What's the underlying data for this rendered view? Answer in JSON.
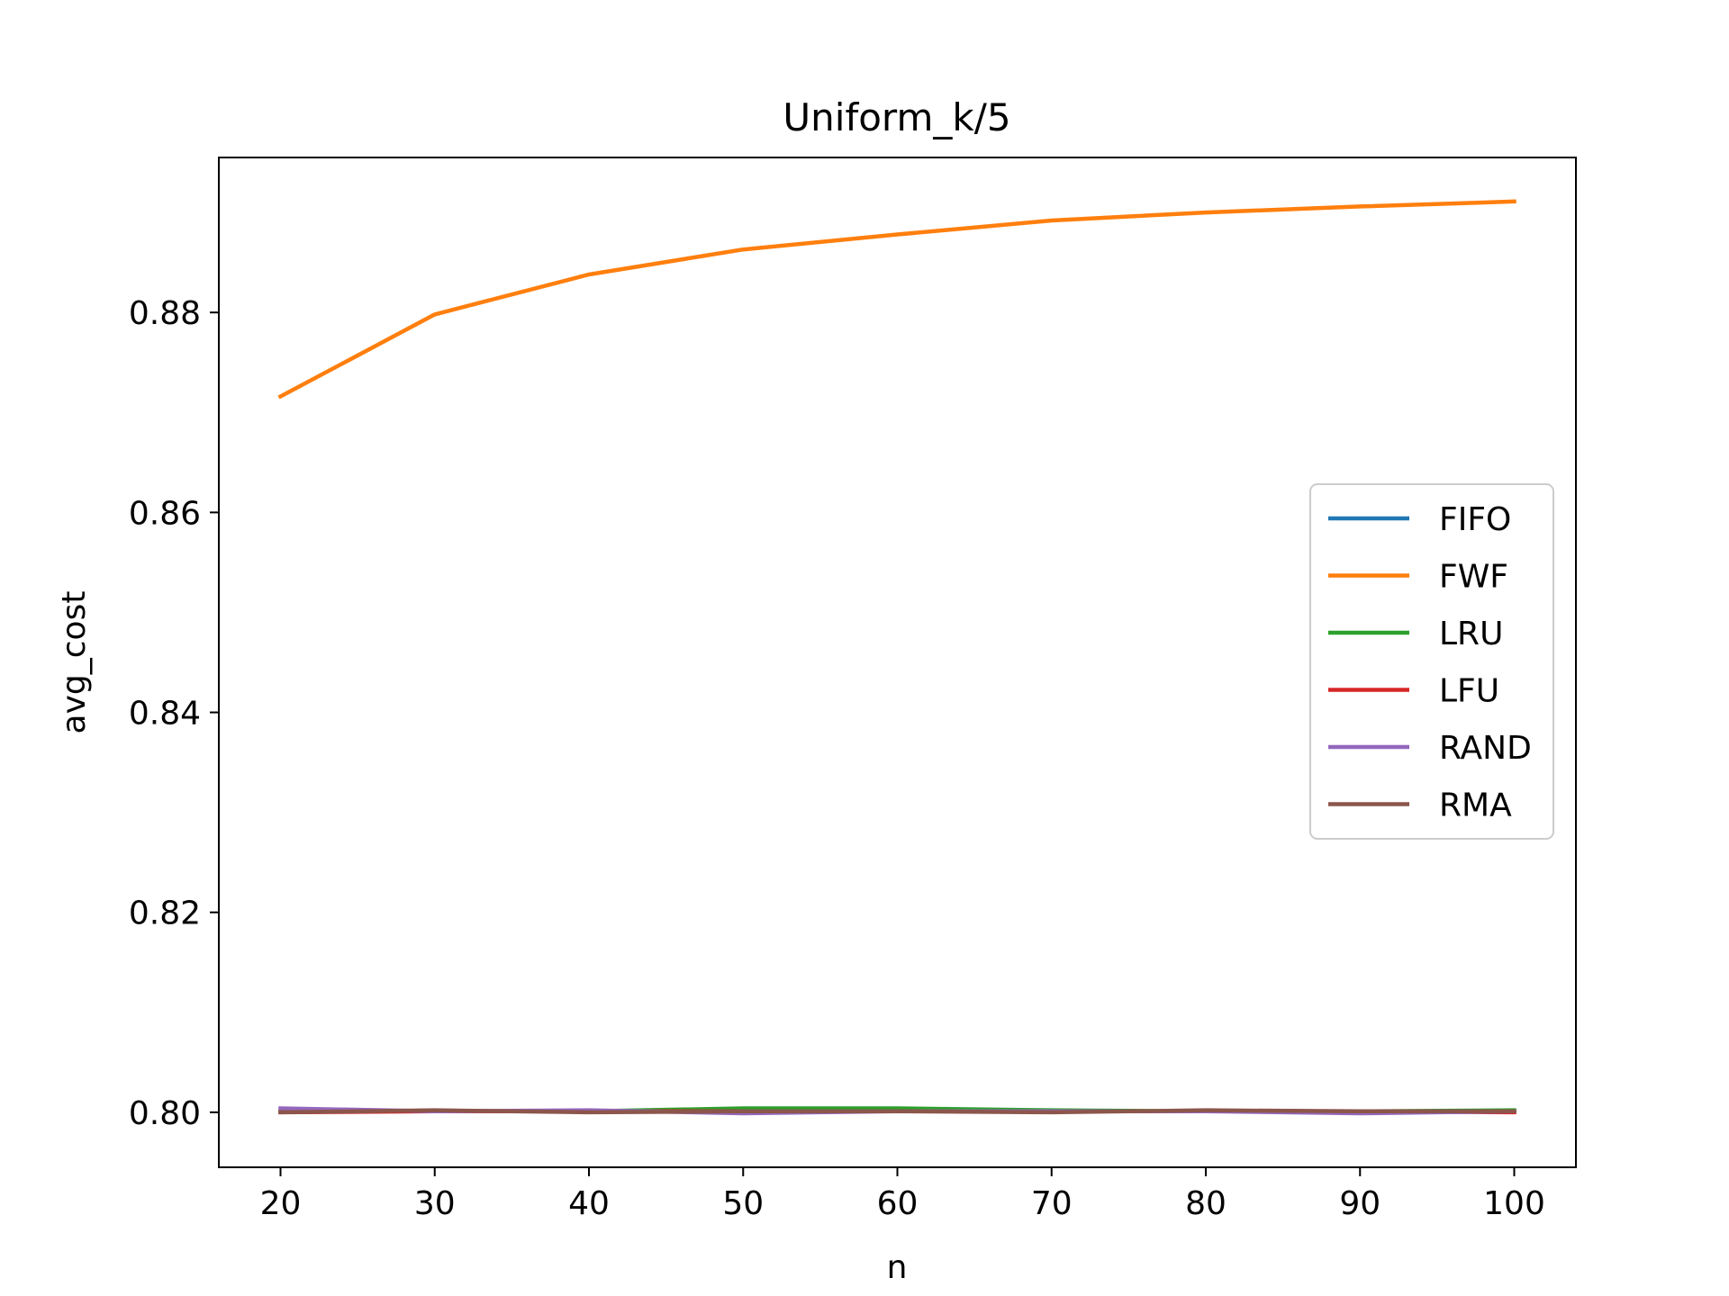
{
  "chart_data": {
    "type": "line",
    "title": "Uniform_k/5",
    "xlabel": "n",
    "ylabel": "avg_cost",
    "x": [
      20,
      30,
      40,
      50,
      60,
      70,
      80,
      90,
      100
    ],
    "xlim": [
      16,
      104
    ],
    "ylim": [
      0.7945,
      0.8955
    ],
    "xticks": [
      20,
      30,
      40,
      50,
      60,
      70,
      80,
      90,
      100
    ],
    "yticks": [
      0.8,
      0.82,
      0.84,
      0.86,
      0.88
    ],
    "ytick_labels": [
      "0.80",
      "0.82",
      "0.84",
      "0.86",
      "0.88"
    ],
    "grid": false,
    "legend_position": "center-right",
    "series": [
      {
        "name": "FIFO",
        "color": "#1f77b4",
        "values": [
          0.8001,
          0.8001,
          0.8001,
          0.8002,
          0.8002,
          0.8001,
          0.8001,
          0.8001,
          0.8001
        ]
      },
      {
        "name": "FWF",
        "color": "#ff7f0e",
        "values": [
          0.8716,
          0.8798,
          0.8838,
          0.8863,
          0.8878,
          0.8892,
          0.89,
          0.8906,
          0.8911
        ]
      },
      {
        "name": "LRU",
        "color": "#2ca02c",
        "values": [
          0.8001,
          0.8001,
          0.8001,
          0.8004,
          0.8004,
          0.8002,
          0.8001,
          0.8001,
          0.8002
        ]
      },
      {
        "name": "LFU",
        "color": "#d62728",
        "values": [
          0.8,
          0.8001,
          0.8001,
          0.8001,
          0.8001,
          0.8001,
          0.8001,
          0.8001,
          0.8
        ]
      },
      {
        "name": "RAND",
        "color": "#9467bd",
        "values": [
          0.8004,
          0.8001,
          0.8002,
          0.7999,
          0.8001,
          0.8001,
          0.8001,
          0.7999,
          0.8001
        ]
      },
      {
        "name": "RMA",
        "color": "#8c564b",
        "values": [
          0.8,
          0.8002,
          0.8,
          0.8001,
          0.8001,
          0.8,
          0.8002,
          0.8001,
          0.8001
        ]
      }
    ]
  }
}
